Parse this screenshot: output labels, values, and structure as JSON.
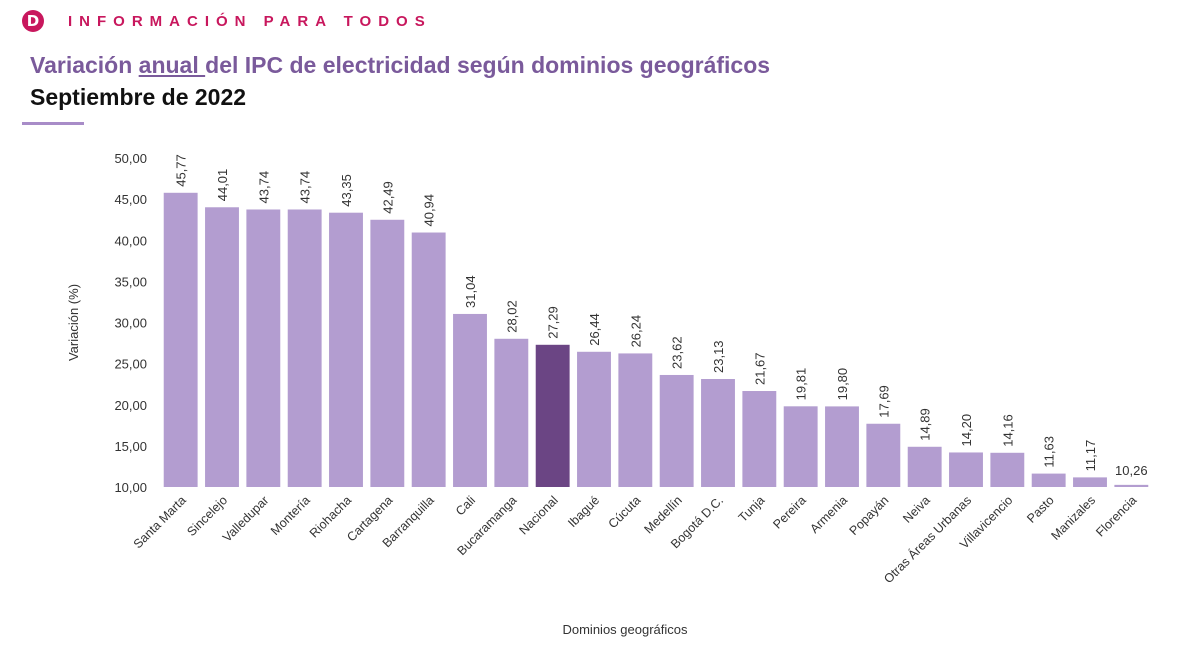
{
  "header": {
    "logo_letter": "D",
    "brand": "INFORMACIÓN PARA TODOS"
  },
  "title": {
    "part1": "Variación ",
    "underlined": "anual ",
    "part2": "del IPC de electricidad según dominios geográficos"
  },
  "subtitle": "Septiembre de 2022",
  "colors": {
    "bar": "#b39dd0",
    "highlight": "#6b4584",
    "title": "#7a5a9b",
    "brand": "#c8175d"
  },
  "chart_data": {
    "type": "bar",
    "title": "Variación anual del IPC de electricidad según dominios geográficos",
    "subtitle": "Septiembre de 2022",
    "xlabel": "Dominios geográficos",
    "ylabel": "Variación (%)",
    "ylim": [
      10,
      50
    ],
    "yticks": [
      "10,00",
      "15,00",
      "20,00",
      "25,00",
      "30,00",
      "35,00",
      "40,00",
      "45,00",
      "50,00"
    ],
    "grid": false,
    "highlight_category": "Nacional",
    "categories": [
      "Santa Marta",
      "Sincelejo",
      "Valledupar",
      "Montería",
      "Riohacha",
      "Cartagena",
      "Barranquilla",
      "Cali",
      "Bucaramanga",
      "Nacional",
      "Ibagué",
      "Cúcuta",
      "Medellín",
      "Bogotá D.C.",
      "Tunja",
      "Pereira",
      "Armenia",
      "Popayán",
      "Neiva",
      "Otras Áreas Urbanas",
      "Villavicencio",
      "Pasto",
      "Manizales",
      "Florencia"
    ],
    "values": [
      45.77,
      44.01,
      43.74,
      43.74,
      43.35,
      42.49,
      40.94,
      31.04,
      28.02,
      27.29,
      26.44,
      26.24,
      23.62,
      23.13,
      21.67,
      19.81,
      19.8,
      17.69,
      14.89,
      14.2,
      14.16,
      11.63,
      11.17,
      10.26
    ],
    "value_labels": [
      "45,77",
      "44,01",
      "43,74",
      "43,74",
      "43,35",
      "42,49",
      "40,94",
      "31,04",
      "28,02",
      "27,29",
      "26,44",
      "26,24",
      "23,62",
      "23,13",
      "21,67",
      "19,81",
      "19,80",
      "17,69",
      "14,89",
      "14,20",
      "14,16",
      "11,63",
      "11,17",
      "10,26"
    ]
  }
}
